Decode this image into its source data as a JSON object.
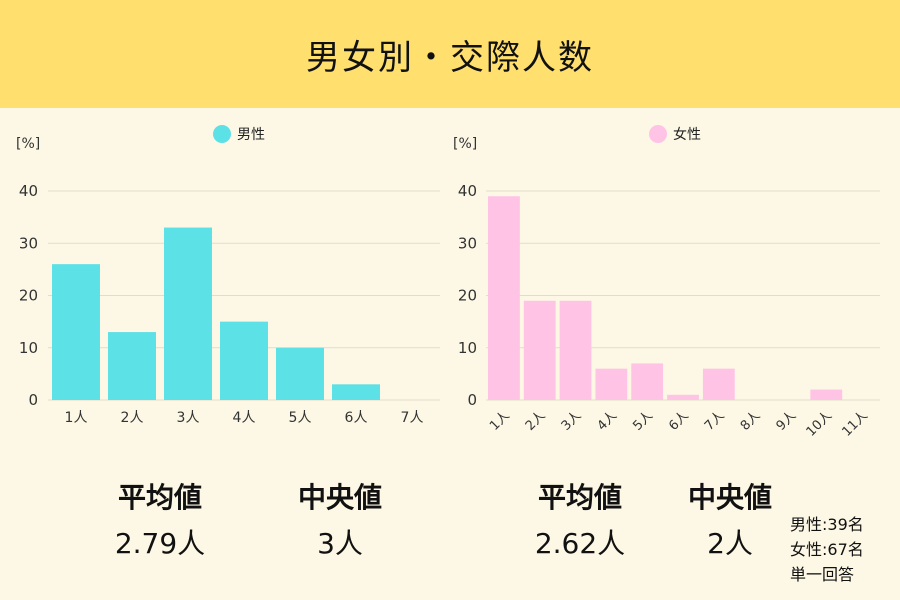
{
  "title": "男女別・交際人数",
  "chart_data": [
    {
      "type": "bar",
      "unit_label": "[%]",
      "legend": "男性",
      "color": "#5ce1e6",
      "categories": [
        "1人",
        "2人",
        "3人",
        "4人",
        "5人",
        "6人",
        "7人"
      ],
      "values": [
        26,
        13,
        33,
        15,
        10,
        3,
        0
      ],
      "ylim": [
        0,
        40
      ],
      "yticks": [
        0,
        10,
        20,
        30,
        40
      ],
      "grid": true,
      "legend_position": "top-center",
      "rotate_ticks": false
    },
    {
      "type": "bar",
      "unit_label": "[%]",
      "legend": "女性",
      "color": "#ffc3e6",
      "categories": [
        "1人",
        "2人",
        "3人",
        "4人",
        "5人",
        "6人",
        "7人",
        "8人",
        "9人",
        "10人",
        "11人"
      ],
      "values": [
        39,
        19,
        19,
        6,
        7,
        1,
        6,
        0,
        0,
        2,
        0
      ],
      "ylim": [
        0,
        40
      ],
      "yticks": [
        0,
        10,
        20,
        30,
        40
      ],
      "grid": true,
      "legend_position": "top-center",
      "rotate_ticks": true
    }
  ],
  "stats": {
    "male": {
      "mean_label": "平均値",
      "mean_value": "2.79人",
      "median_label": "中央値",
      "median_value": "3人"
    },
    "female": {
      "mean_label": "平均値",
      "mean_value": "2.62人",
      "median_label": "中央値",
      "median_value": "2人"
    }
  },
  "notes": {
    "male_count": "男性:39名",
    "female_count": "女性:67名",
    "answer_type": "単一回答"
  }
}
